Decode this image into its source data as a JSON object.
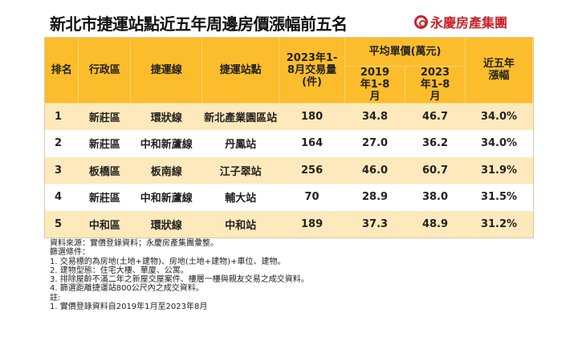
{
  "title": "新北市捷運站點近五年周邊房價漲幅前五名",
  "logo": {
    "text": "永慶房產集團",
    "color": "#c8242b"
  },
  "colors": {
    "header": "#fbbd2c",
    "odd_row": "#fde9bb",
    "even_row": "#ffffff"
  },
  "table": {
    "headers": {
      "rank": "排名",
      "district": "行政區",
      "line": "捷運線",
      "station": "捷運站點",
      "volume": "2023年1-8月交易量(件)",
      "avg_price": "平均單價(萬元)",
      "price_2019": "2019年1-8月",
      "price_2023": "2023年1-8月",
      "growth": "近五年漲幅"
    },
    "rows": [
      {
        "rank": "1",
        "district": "新莊區",
        "line": "環狀線",
        "station": "新北產業園區站",
        "volume": "180",
        "p2019": "34.8",
        "p2023": "46.7",
        "growth": "34.0%"
      },
      {
        "rank": "2",
        "district": "新莊區",
        "line": "中和新蘆線",
        "station": "丹鳳站",
        "volume": "164",
        "p2019": "27.0",
        "p2023": "36.2",
        "growth": "34.0%"
      },
      {
        "rank": "3",
        "district": "板橋區",
        "line": "板南線",
        "station": "江子翠站",
        "volume": "256",
        "p2019": "46.0",
        "p2023": "60.7",
        "growth": "31.9%"
      },
      {
        "rank": "4",
        "district": "新莊區",
        "line": "中和新蘆線",
        "station": "輔大站",
        "volume": "70",
        "p2019": "28.9",
        "p2023": "38.0",
        "growth": "31.5%"
      },
      {
        "rank": "5",
        "district": "中和區",
        "line": "環狀線",
        "station": "中和站",
        "volume": "189",
        "p2019": "37.3",
        "p2023": "48.9",
        "growth": "31.2%"
      }
    ]
  },
  "notes": [
    "資料來源：實價登錄資料；永慶房產集團彙整。",
    "篩選條件：",
    "1. 交易標的為房地(土地+建物)、房地(土地+建物)+車位、建物。",
    "2. 建物型態：住宅大樓、華廈、公寓。",
    "3. 排除屋齡不滿二年之新屋交屋案件、樓層一樓與親友交易之成交資料。",
    "4. 篩選距離捷運站800公尺內之成交資料。",
    "註:",
    "1. 實價登錄資料自2019年1月至2023年8月"
  ]
}
